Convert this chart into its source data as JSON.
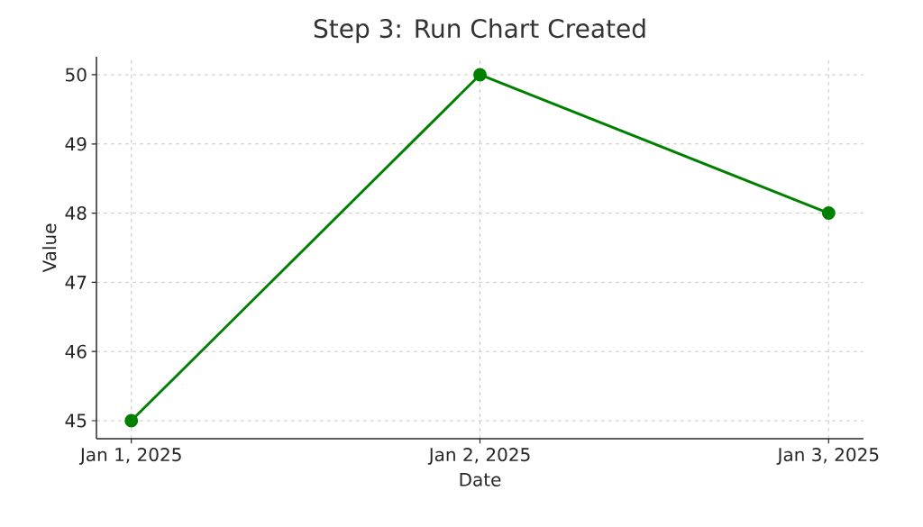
{
  "chart_data": {
    "type": "line",
    "title": "Step 3: Run Chart Created",
    "xlabel": "Date",
    "ylabel": "Value",
    "x": [
      "2025-01-01",
      "2025-01-02",
      "2025-01-03"
    ],
    "series": [
      {
        "color": "#008000",
        "values": [
          45,
          50,
          48
        ]
      }
    ],
    "xlim": [
      "2024-12-31T21:36",
      "2025-01-03T02:24"
    ],
    "xticks": [
      {
        "value": "2025-01-01",
        "label": "Jan 1, 2025"
      },
      {
        "value": "2025-01-02",
        "label": "Jan 2, 2025"
      },
      {
        "value": "2025-01-03",
        "label": "Jan 3, 2025"
      }
    ],
    "ylim": [
      44.74,
      50.26
    ],
    "yticks": [
      45,
      46,
      47,
      48,
      49,
      50
    ],
    "grid": true,
    "marker": "circle",
    "line_style": "solid"
  }
}
